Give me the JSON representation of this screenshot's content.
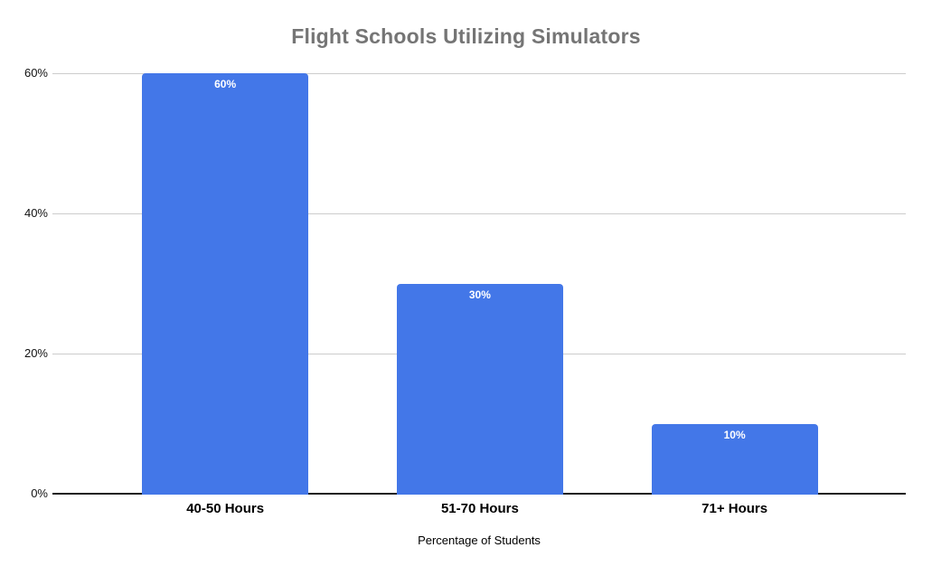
{
  "page": {
    "background": "#ffffff"
  },
  "chart_data": {
    "type": "bar",
    "title": "Flight Schools Utilizing Simulators",
    "categories": [
      "40-50 Hours",
      "51-70 Hours",
      "71+ Hours"
    ],
    "values": [
      60,
      30,
      10
    ],
    "value_labels": [
      "60%",
      "30%",
      "10%"
    ],
    "xlabel": "Percentage of Students",
    "ylabel": "",
    "ylim": [
      0,
      60
    ],
    "yticks": [
      0,
      20,
      40,
      60
    ],
    "ytick_labels": [
      "0%",
      "20%",
      "40%",
      "60%"
    ],
    "grid": true,
    "legend": "none",
    "colors": {
      "bar": "#4377e8",
      "bar_label": "#ffffff",
      "title": "#757575",
      "gridline": "#cccccc",
      "axis_line": "#1f1f1f",
      "tick_label": "#111111",
      "category_label": "#000000",
      "axis_title": "#000000"
    }
  }
}
